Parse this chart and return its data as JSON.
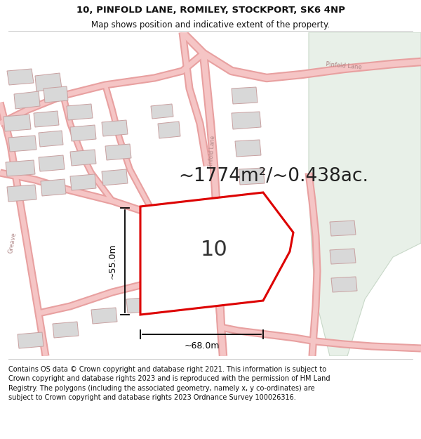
{
  "title": "10, PINFOLD LANE, ROMILEY, STOCKPORT, SK6 4NP",
  "subtitle": "Map shows position and indicative extent of the property.",
  "area_text": "~1774m²/~0.438ac.",
  "dim_vertical": "~55.0m",
  "dim_horizontal": "~68.0m",
  "label_number": "10",
  "footer": "Contains OS data © Crown copyright and database right 2021. This information is subject to Crown copyright and database rights 2023 and is reproduced with the permission of HM Land Registry. The polygons (including the associated geometry, namely x, y co-ordinates) are subject to Crown copyright and database rights 2023 Ordnance Survey 100026316.",
  "title_fontsize": 9.5,
  "subtitle_fontsize": 8.5,
  "footer_fontsize": 7.0,
  "area_fontsize": 19,
  "label_fontsize": 22,
  "dim_fontsize": 9,
  "bg_color": "#ffffff",
  "map_bg": "#ffffff",
  "road_color": "#f5c5c5",
  "road_edge": "#e8a0a0",
  "building_fill": "#d8d8d8",
  "building_edge": "#c8a0a0",
  "green_fill": "#e8f0e8",
  "green_edge": "#c8d8c8",
  "polygon_color": "#dd0000",
  "header_line_color": "#cccccc",
  "footer_line_color": "#cccccc",
  "text_color": "#111111",
  "dim_color": "#000000",
  "road_label_color": "#b08888"
}
